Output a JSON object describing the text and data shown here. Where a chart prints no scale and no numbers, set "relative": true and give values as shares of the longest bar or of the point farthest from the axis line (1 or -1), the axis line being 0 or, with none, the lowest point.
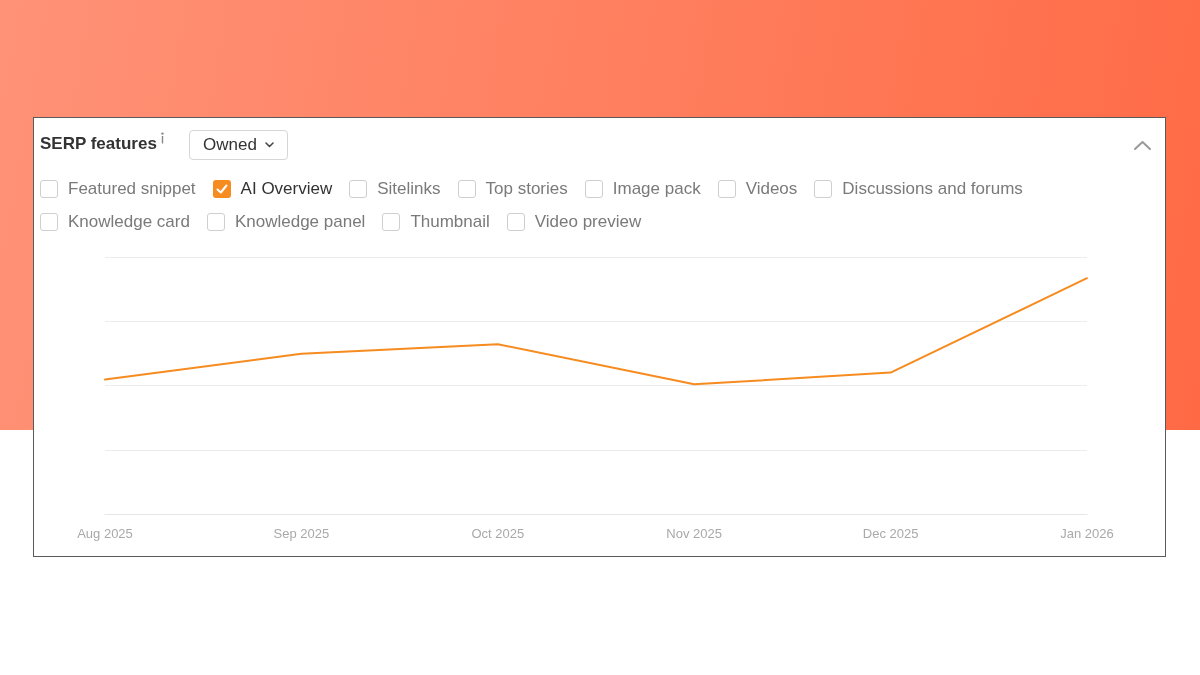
{
  "chart_data": {
    "type": "line",
    "title": "SERP features",
    "annotations": [
      "Owned",
      "Featured snippet",
      "Sitelinks",
      "Top stories",
      "Image pack",
      "Videos",
      "Discussions and forums",
      "Knowledge card",
      "Knowledge panel",
      "Thumbnail",
      "Video preview"
    ],
    "categories": [
      "Aug 2025",
      "Sep 2025",
      "Oct 2025",
      "Nov 2025",
      "Dec 2025",
      "Jan 2026"
    ],
    "series": [
      {
        "name": "AI Overview",
        "color": "#f68b1f",
        "values": [
          0.57,
          0.68,
          0.72,
          0.55,
          0.6,
          1
        ]
      }
    ],
    "relative": true,
    "grid": "y",
    "legend": "top left",
    "marker": "none"
  }
}
